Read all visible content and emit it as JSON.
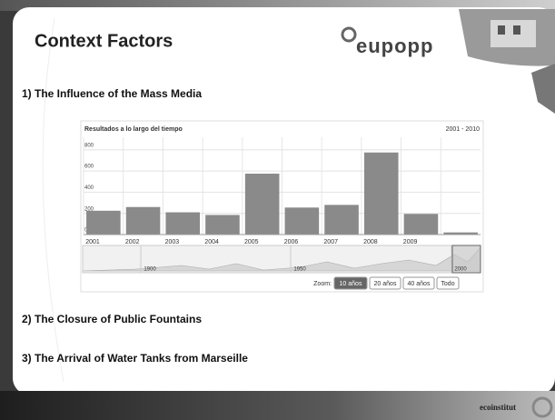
{
  "slide": {
    "title": "Context Factors",
    "logo": "eupopp",
    "items": [
      "1)   The Influence of the Mass Media",
      "2) The Closure of Public Fountains",
      "3) The Arrival of Water Tanks from Marseille"
    ],
    "footer_logo": "ecoinstitut"
  },
  "chart_data": {
    "type": "bar",
    "title": "Resultados a lo largo del tiempo",
    "subtitle": "2001 - 2010",
    "categories": [
      "2001",
      "2002",
      "2003",
      "2004",
      "2005",
      "2006",
      "2007",
      "2008",
      "2009",
      null
    ],
    "values": [
      225,
      260,
      210,
      185,
      575,
      255,
      280,
      775,
      195,
      20
    ],
    "color": "#8a8a8a",
    "ylim": [
      0,
      850
    ],
    "yticks": [
      0,
      200,
      400,
      600,
      800
    ],
    "grid": true,
    "navigator": {
      "labels": [
        "1900",
        "1950",
        "2000"
      ]
    },
    "zoom": {
      "label": "Zoom:",
      "buttons": [
        "10 años",
        "20 años",
        "40 años",
        "Todo"
      ],
      "selected": 0
    }
  }
}
